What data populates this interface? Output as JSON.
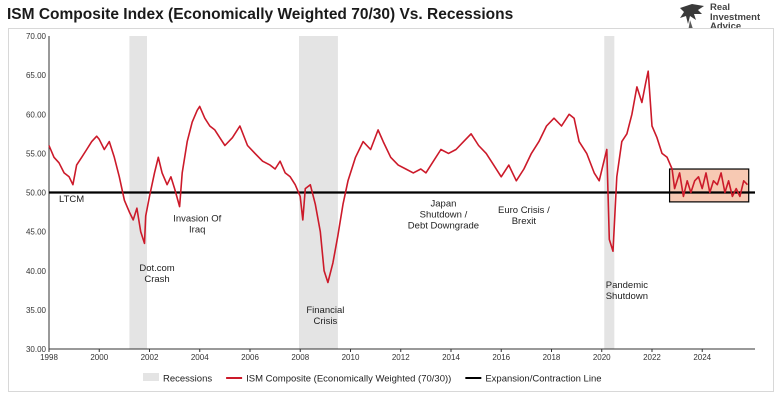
{
  "title": "ISM Composite Index (Economically Weighted 70/30) Vs. Recessions",
  "logo": {
    "lines": [
      "Real",
      "Investment",
      "Advice"
    ]
  },
  "colors": {
    "series": "#cc1a2a",
    "recession": "#e4e4e4",
    "threshold": "#000000",
    "highlight_fill": "#f7c9b3",
    "highlight_border": "#000000"
  },
  "chart_data": {
    "type": "line",
    "ylim": [
      30,
      70
    ],
    "xlim": [
      1998.0,
      2026.1
    ],
    "y_ticks": [
      "30.00",
      "35.00",
      "40.00",
      "45.00",
      "50.00",
      "55.00",
      "60.00",
      "65.00",
      "70.00"
    ],
    "x_ticks": [
      "1998",
      "2000",
      "2002",
      "2004",
      "2006",
      "2008",
      "2010",
      "2012",
      "2014",
      "2016",
      "2018",
      "2020",
      "2022",
      "2024"
    ],
    "recessions": [
      [
        2001.2,
        2001.9
      ],
      [
        2007.95,
        2009.5
      ],
      [
        2020.1,
        2020.5
      ]
    ],
    "threshold": 50,
    "highlight": {
      "x": [
        2022.7,
        2025.85
      ],
      "y": [
        48.8,
        53.0
      ]
    },
    "series": [
      {
        "name": "ISM Composite (Economically Weighted (70/30))",
        "x": [
          1998.0,
          1998.2,
          1998.4,
          1998.6,
          1998.8,
          1998.95,
          1999.1,
          1999.3,
          1999.5,
          1999.7,
          1999.9,
          2000.0,
          2000.2,
          2000.4,
          2000.6,
          2000.8,
          2001.0,
          2001.2,
          2001.35,
          2001.5,
          2001.65,
          2001.8,
          2001.85,
          2002.0,
          2002.2,
          2002.35,
          2002.5,
          2002.7,
          2002.85,
          2003.0,
          2003.2,
          2003.3,
          2003.5,
          2003.7,
          2003.9,
          2004.0,
          2004.2,
          2004.4,
          2004.6,
          2004.8,
          2005.0,
          2005.3,
          2005.6,
          2005.9,
          2006.2,
          2006.5,
          2006.8,
          2007.0,
          2007.2,
          2007.4,
          2007.6,
          2007.8,
          2008.0,
          2008.1,
          2008.2,
          2008.4,
          2008.6,
          2008.8,
          2008.95,
          2009.1,
          2009.3,
          2009.5,
          2009.7,
          2009.9,
          2010.2,
          2010.5,
          2010.8,
          2011.1,
          2011.3,
          2011.6,
          2011.9,
          2012.2,
          2012.5,
          2012.8,
          2013.0,
          2013.3,
          2013.6,
          2013.9,
          2014.2,
          2014.5,
          2014.8,
          2015.1,
          2015.4,
          2015.7,
          2016.0,
          2016.3,
          2016.6,
          2016.9,
          2017.2,
          2017.5,
          2017.8,
          2018.1,
          2018.4,
          2018.7,
          2018.9,
          2019.1,
          2019.4,
          2019.7,
          2019.9,
          2020.05,
          2020.2,
          2020.3,
          2020.45,
          2020.6,
          2020.8,
          2021.0,
          2021.2,
          2021.4,
          2021.6,
          2021.75,
          2021.85,
          2022.0,
          2022.2,
          2022.4,
          2022.6,
          2022.8,
          2022.9,
          2023.0,
          2023.1,
          2023.25,
          2023.4,
          2023.55,
          2023.7,
          2023.85,
          2024.0,
          2024.15,
          2024.3,
          2024.45,
          2024.6,
          2024.75,
          2024.9,
          2025.05,
          2025.2,
          2025.35,
          2025.5,
          2025.65,
          2025.8
        ],
        "values": [
          56.0,
          54.5,
          53.8,
          52.5,
          52.0,
          51.0,
          53.5,
          54.5,
          55.5,
          56.5,
          57.2,
          56.8,
          55.5,
          56.5,
          54.5,
          52.0,
          49.0,
          47.5,
          46.5,
          48.0,
          45.0,
          43.5,
          47.0,
          49.5,
          52.5,
          54.5,
          52.5,
          51.0,
          52.0,
          50.5,
          48.2,
          52.5,
          56.5,
          59.0,
          60.5,
          61.0,
          59.5,
          58.5,
          58.0,
          57.0,
          56.0,
          57.0,
          58.5,
          56.0,
          55.0,
          54.0,
          53.5,
          53.0,
          54.0,
          52.5,
          52.0,
          51.0,
          49.5,
          46.5,
          50.5,
          51.0,
          48.5,
          45.0,
          40.0,
          38.5,
          41.0,
          44.5,
          48.5,
          51.5,
          54.5,
          56.5,
          55.5,
          58.0,
          56.5,
          54.5,
          53.5,
          53.0,
          52.5,
          53.0,
          52.5,
          54.0,
          55.5,
          55.0,
          55.5,
          56.5,
          57.5,
          56.0,
          55.0,
          53.5,
          52.0,
          53.5,
          51.5,
          53.0,
          55.0,
          56.5,
          58.5,
          59.5,
          58.5,
          60.0,
          59.5,
          56.5,
          55.0,
          52.5,
          51.5,
          53.5,
          55.5,
          44.0,
          42.5,
          52.0,
          56.5,
          57.5,
          60.0,
          63.5,
          61.5,
          64.0,
          65.5,
          58.5,
          57.0,
          55.0,
          54.5,
          53.0,
          50.5,
          51.5,
          52.5,
          49.5,
          51.5,
          50.0,
          51.5,
          52.0,
          50.5,
          52.5,
          50.0,
          51.5,
          51.0,
          52.5,
          50.0,
          51.5,
          49.5,
          50.5,
          49.5,
          51.5,
          51.0
        ]
      }
    ],
    "annotations": [
      {
        "x": 1998.9,
        "y": 48.8,
        "lines": [
          "LTCM"
        ]
      },
      {
        "x": 2002.3,
        "y": 40.0,
        "lines": [
          "Dot.com",
          "Crash"
        ]
      },
      {
        "x": 2003.9,
        "y": 46.3,
        "lines": [
          "Invasion Of",
          "Iraq"
        ]
      },
      {
        "x": 2009.0,
        "y": 34.6,
        "lines": [
          "Financial",
          "Crisis"
        ]
      },
      {
        "x": 2013.7,
        "y": 48.2,
        "lines": [
          "Japan",
          "Shutdown /",
          "Debt Downgrade"
        ]
      },
      {
        "x": 2016.9,
        "y": 47.4,
        "lines": [
          "Euro Crisis /",
          "Brexit"
        ]
      },
      {
        "x": 2021.0,
        "y": 37.8,
        "lines": [
          "Pandemic",
          "Shutdown"
        ]
      }
    ],
    "legend": {
      "position": "bottom",
      "items": [
        {
          "label": "Recessions",
          "kind": "recession"
        },
        {
          "label": "ISM Composite (Economically Weighted (70/30))",
          "kind": "series"
        },
        {
          "label": "Expansion/Contraction Line",
          "kind": "threshold"
        }
      ]
    }
  }
}
